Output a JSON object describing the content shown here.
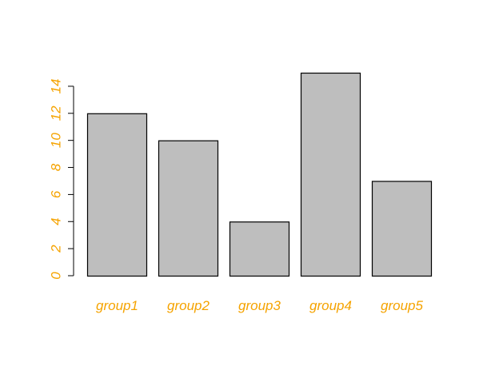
{
  "chart_data": {
    "type": "bar",
    "categories": [
      "group1",
      "group2",
      "group3",
      "group4",
      "group5"
    ],
    "values": [
      12,
      10,
      4,
      15,
      7
    ],
    "title": "",
    "xlabel": "",
    "ylabel": "",
    "ylim": [
      0,
      15
    ],
    "yticks": [
      "0",
      "2",
      "4",
      "6",
      "8",
      "10",
      "12",
      "14"
    ],
    "grid": false,
    "legend": "none",
    "colors": {
      "bar_fill": "#bebebe",
      "bar_stroke": "#000000",
      "axis": "#000000",
      "tick_labels": "#f5a300",
      "category_labels": "#f5a300"
    }
  }
}
